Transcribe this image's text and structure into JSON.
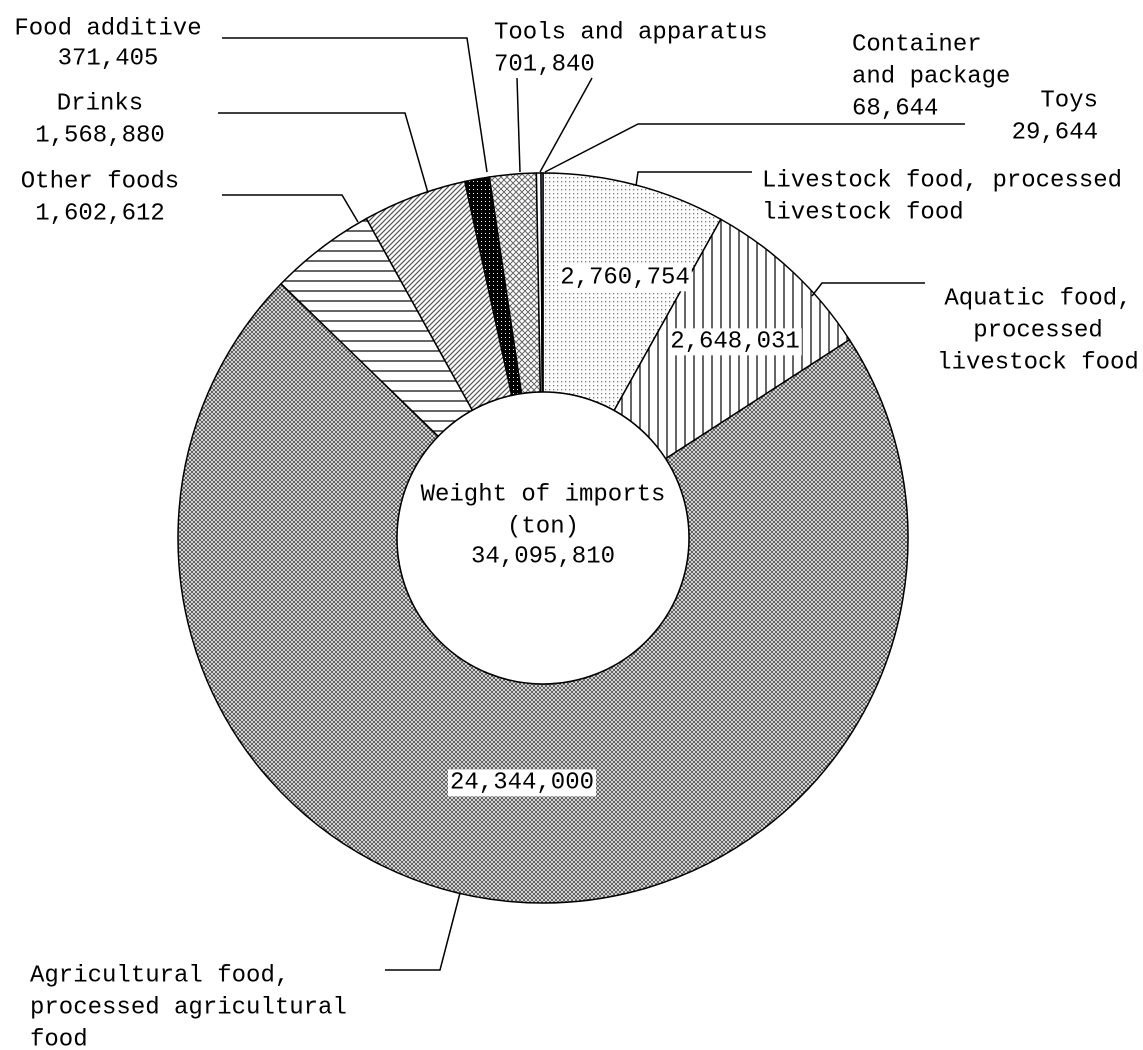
{
  "chart_data": {
    "type": "donut",
    "categories": [
      [
        "Livestock food, processed",
        "livestock food"
      ],
      [
        "Aquatic food,",
        "processed",
        "livestock food"
      ],
      [
        "Agricultural food,",
        "processed agricultural",
        "food"
      ],
      [
        "Other foods"
      ],
      [
        "Drinks"
      ],
      [
        "Food additive"
      ],
      [
        "Tools and apparatus"
      ],
      [
        "Container",
        "and package"
      ],
      [
        "Toys"
      ]
    ],
    "values": [
      2760754,
      2648031,
      24344000,
      1602612,
      1568880,
      371405,
      701840,
      68644,
      29644
    ],
    "value_labels": [
      "2,760,754",
      "2,648,031",
      "24,344,000",
      "1,602,612",
      "1,568,880",
      "371,405",
      "701,840",
      "68,644",
      "29,644"
    ],
    "center_label": [
      "Weight of imports",
      "(ton)"
    ],
    "total": {
      "value": 34095810,
      "label": "34,095,810"
    }
  }
}
